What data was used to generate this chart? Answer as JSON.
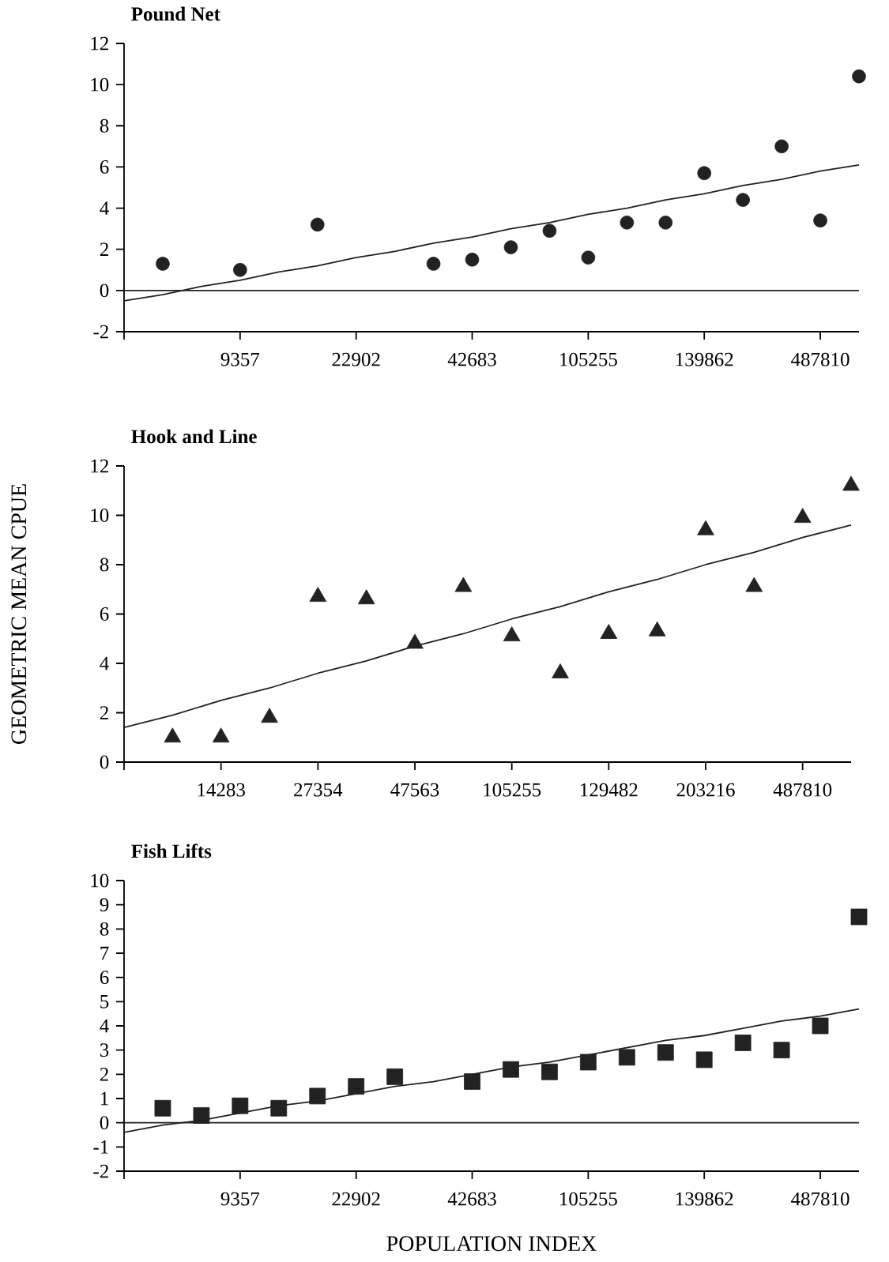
{
  "chart_data": [
    {
      "type": "scatter",
      "title": "Pound Net",
      "ylim": [
        -2,
        12
      ],
      "categories": [
        null,
        null,
        null,
        "9357",
        null,
        null,
        "22902",
        null,
        null,
        "42683",
        null,
        null,
        "105255",
        null,
        null,
        "139862",
        null,
        null,
        "487810",
        null
      ],
      "yticks": [
        -2,
        0,
        2,
        4,
        6,
        8,
        10,
        12
      ],
      "ref_lines": [
        {
          "axis": "y",
          "value": 0,
          "color": "#222222"
        }
      ],
      "series": [
        {
          "color": "#222222",
          "marker": "circle",
          "values": [
            null,
            1.3,
            null,
            1.0,
            null,
            3.2,
            null,
            null,
            1.3,
            1.5,
            2.1,
            2.9,
            1.6,
            3.3,
            3.3,
            5.7,
            4.4,
            7.0,
            3.4,
            10.4
          ]
        },
        {
          "type": "line",
          "marker": "none",
          "color": "#222222",
          "values": [
            -0.5,
            -0.2,
            0.2,
            0.5,
            0.9,
            1.2,
            1.6,
            1.9,
            2.3,
            2.6,
            3.0,
            3.3,
            3.7,
            4.0,
            4.4,
            4.7,
            5.1,
            5.4,
            5.8,
            6.1
          ]
        }
      ]
    },
    {
      "type": "scatter",
      "title": "Hook and Line",
      "ylabel": "GEOMETRIC MEAN CPUE",
      "ylim": [
        0,
        12
      ],
      "categories": [
        null,
        null,
        "14283",
        null,
        "27354",
        null,
        "47563",
        null,
        "105255",
        null,
        "129482",
        null,
        "203216",
        null,
        "487810",
        null
      ],
      "yticks": [
        0,
        2,
        4,
        6,
        8,
        10,
        12
      ],
      "series": [
        {
          "color": "#222222",
          "marker": "triangle",
          "values": [
            null,
            1.0,
            1.0,
            1.8,
            6.7,
            6.6,
            4.8,
            7.1,
            5.1,
            3.6,
            5.2,
            5.3,
            9.4,
            7.1,
            9.9,
            11.2
          ]
        },
        {
          "type": "line",
          "marker": "none",
          "color": "#222222",
          "values": [
            1.4,
            1.9,
            2.5,
            3.0,
            3.6,
            4.1,
            4.7,
            5.2,
            5.8,
            6.3,
            6.9,
            7.4,
            8.0,
            8.5,
            9.1,
            9.6
          ]
        }
      ]
    },
    {
      "type": "scatter",
      "title": "Fish Lifts",
      "xlabel": "POPULATION INDEX",
      "ylim": [
        -2,
        10
      ],
      "categories": [
        null,
        null,
        null,
        "9357",
        null,
        null,
        "22902",
        null,
        null,
        "42683",
        null,
        null,
        "105255",
        null,
        null,
        "139862",
        null,
        null,
        "487810",
        null
      ],
      "yticks": [
        -2,
        -1,
        0,
        1,
        2,
        3,
        4,
        5,
        6,
        7,
        8,
        9,
        10
      ],
      "ref_lines": [
        {
          "axis": "y",
          "value": 0,
          "color": "#222222"
        }
      ],
      "series": [
        {
          "color": "#222222",
          "marker": "square",
          "values": [
            null,
            0.6,
            0.3,
            0.7,
            0.6,
            1.1,
            1.5,
            1.9,
            null,
            1.7,
            2.2,
            2.1,
            2.5,
            2.7,
            2.9,
            2.6,
            3.3,
            3.0,
            4.0,
            8.5
          ]
        },
        {
          "type": "line",
          "marker": "none",
          "color": "#222222",
          "values": [
            -0.4,
            -0.1,
            0.1,
            0.4,
            0.7,
            0.9,
            1.2,
            1.5,
            1.7,
            2.0,
            2.3,
            2.5,
            2.8,
            3.1,
            3.4,
            3.6,
            3.9,
            4.2,
            4.4,
            4.7
          ]
        }
      ]
    }
  ]
}
